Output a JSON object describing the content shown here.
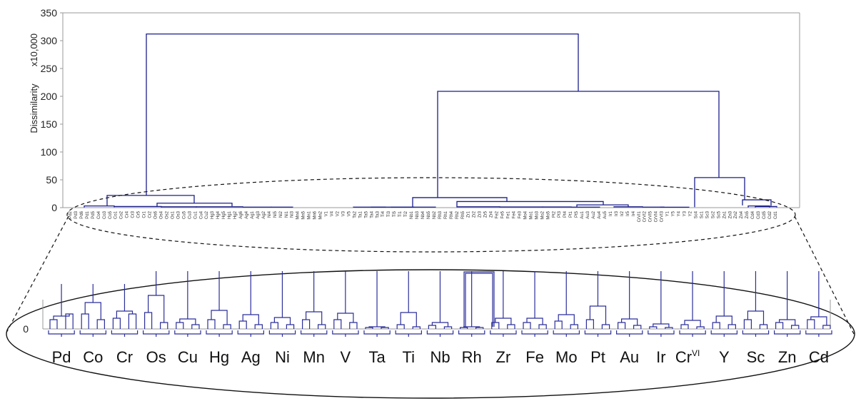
{
  "chart_data": {
    "type": "dendrogram",
    "ylabel": "Dissimilarity",
    "multiplier_label": "x10,000",
    "yticks": [
      0,
      50,
      100,
      150,
      200,
      250,
      300,
      350
    ],
    "ylim": [
      0,
      350
    ],
    "grid": false,
    "top_merges": [
      {
        "height": 312,
        "left": "group A",
        "right": "group B"
      },
      {
        "height": 209,
        "left": "Ta..Cr-VI cluster",
        "right": "Y/Sc/Zn/Cd cluster"
      },
      {
        "height": 54,
        "left": "Y",
        "right": "Sc/Zn/Cd"
      },
      {
        "height": 22,
        "left": "Pd/Co/Cr",
        "right": "Os..Mn"
      },
      {
        "height": 18,
        "left": "Ta/Ti/Nb",
        "right": "Rh..Cr-VI"
      },
      {
        "height": 14,
        "left": "Sc",
        "right": "Zn/Cd"
      },
      {
        "height": 11,
        "left": "Rh/Zr",
        "right": "Fe..Cr-VI"
      },
      {
        "height": 8,
        "left": "Os/Cu",
        "right": "Hg..Mn"
      },
      {
        "height": 5,
        "left": "Pt",
        "right": "Au/Ir"
      }
    ],
    "leaf_labels": [
      "Pd2",
      "Pd3",
      "Pd6",
      "Pd1",
      "Pd5",
      "Co4",
      "Co3",
      "Co5",
      "Co1",
      "Co2",
      "Cr4",
      "Cr3",
      "Cr5",
      "Cr1",
      "Cr2",
      "Os6",
      "Os4",
      "Os2",
      "Os1",
      "Os3",
      "Cu5",
      "Cu3",
      "Cu1",
      "Cu4",
      "Cu2",
      "Hg3",
      "Hg4",
      "Hg5",
      "Hg1",
      "Hg2",
      "Ag6",
      "Ag4",
      "Ag1",
      "Ag3",
      "Ag2",
      "Ni4",
      "Ni5",
      "Ni2",
      "Ni1",
      "Ni3",
      "Mn4",
      "Mn5",
      "Mn1",
      "Mn6",
      "Mn2",
      "V1",
      "V4",
      "V2",
      "V3",
      "V5",
      "Ta2",
      "Ta1",
      "Ta5",
      "Ta4",
      "Ta3",
      "Ti4",
      "Ti3",
      "Ti5",
      "Ti1",
      "Ti2",
      "Nb1",
      "Nb3",
      "Nb4",
      "Nb5",
      "Nb2",
      "Rh3",
      "Rh1",
      "Rh4",
      "Rh2",
      "Rh5",
      "Zr1",
      "Zr2",
      "Zr3",
      "Zr5",
      "Zr4",
      "Fe2",
      "Fe5",
      "Fe1",
      "Fe4",
      "Fe3",
      "Mo4",
      "Mo1",
      "Mo3",
      "Mo2",
      "Mo5",
      "Pt2",
      "Pt3",
      "Pt4",
      "Pt1",
      "Pt5",
      "Au1",
      "Au3",
      "Au2",
      "Au4",
      "Au5",
      "Ir1",
      "Ir3",
      "Ir2",
      "Ir5",
      "Ir4",
      "CrVI1",
      "CrVI2",
      "CrVI5",
      "CrVI4",
      "CrVI3",
      "Y1",
      "Y5",
      "Y4",
      "Y3",
      "Y2",
      "Sc4",
      "Sc1",
      "Sc3",
      "Sc2",
      "Sc5",
      "Zn1",
      "Zn3",
      "Zn2",
      "Zn4",
      "Zn5",
      "Cd4",
      "Cd3",
      "Cd5",
      "Cd2",
      "Cd1"
    ],
    "zoom_labels": [
      "Pd",
      "Co",
      "Cr",
      "Os",
      "Cu",
      "Hg",
      "Ag",
      "Ni",
      "Mn",
      "V",
      "Ta",
      "Ti",
      "Nb",
      "Rh",
      "Zr",
      "Fe",
      "Mo",
      "Pt",
      "Au",
      "Ir",
      "Cr",
      "Y",
      "Sc",
      "Zn",
      "Cd"
    ],
    "zoom_superscripts": [
      "",
      "",
      "",
      "",
      "",
      "",
      "",
      "",
      "",
      "",
      "",
      "",
      "",
      "",
      "",
      "",
      "",
      "",
      "",
      "",
      "VI",
      "",
      "",
      "",
      ""
    ],
    "zoom_zero_label": "0"
  },
  "colors": {
    "tree": "#1b1f8a",
    "zoom_tree": "#2b2e9a",
    "axis": "#999999",
    "ellipse": "#111111"
  }
}
